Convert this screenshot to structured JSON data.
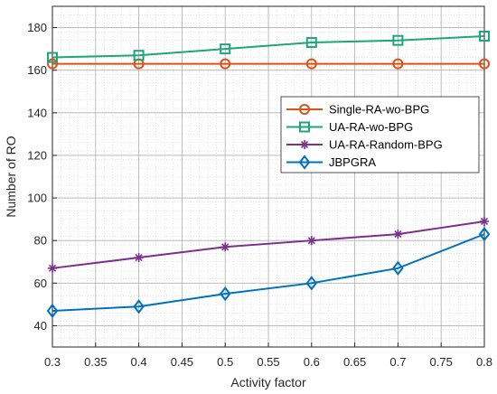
{
  "chart_data": {
    "type": "line",
    "xlabel": "Activity factor",
    "ylabel": "Number of RO",
    "xlim": [
      0.3,
      0.8
    ],
    "ylim": [
      30,
      190
    ],
    "xticks": [
      "0.3",
      "0.35",
      "0.4",
      "0.45",
      "0.5",
      "0.55",
      "0.6",
      "0.65",
      "0.7",
      "0.75",
      "0.8"
    ],
    "yticks": [
      "40",
      "60",
      "80",
      "100",
      "120",
      "140",
      "160",
      "180"
    ],
    "grid": true,
    "minor_grid": true,
    "legend_position": "right, middle",
    "x": [
      0.3,
      0.4,
      0.5,
      0.6,
      0.7,
      0.8
    ],
    "series": [
      {
        "name": "Single-RA-wo-BPG",
        "color": "#D95319",
        "marker": "circle",
        "values": [
          163,
          163,
          163,
          163,
          163,
          163
        ]
      },
      {
        "name": "UA-RA-wo-BPG",
        "color": "#1FA57A",
        "marker": "square",
        "values": [
          166,
          167,
          170,
          173,
          174,
          176
        ]
      },
      {
        "name": "UA-RA-Random-BPG",
        "color": "#7E2F8E",
        "marker": "asterisk",
        "values": [
          67,
          72,
          77,
          80,
          83,
          89
        ]
      },
      {
        "name": "JBPGRA",
        "color": "#0072BD",
        "marker": "diamond",
        "values": [
          47,
          49,
          55,
          60,
          67,
          83
        ]
      }
    ]
  }
}
